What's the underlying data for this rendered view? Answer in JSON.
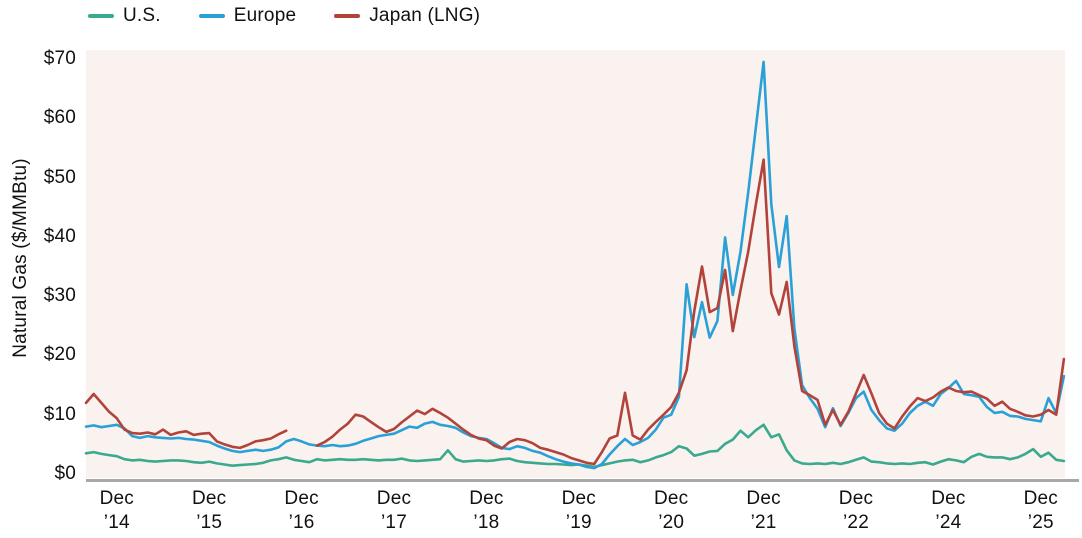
{
  "legend": {
    "items": [
      {
        "label": "U.S.",
        "color": "#3aa98d"
      },
      {
        "label": "Europe",
        "color": "#2aa0d6"
      },
      {
        "label": "Japan (LNG)",
        "color": "#b2433a"
      }
    ]
  },
  "chart_data": {
    "type": "line",
    "ylabel": "Natural Gas ($/MMBtu)",
    "ylim": [
      0,
      70
    ],
    "grid": false,
    "legend_position": "top-left",
    "plot_bg": "#f9f2ef",
    "axis_line_color": "#a8a8a8",
    "yticks": [
      {
        "value": 0,
        "label": "$0"
      },
      {
        "value": 10,
        "label": "$10"
      },
      {
        "value": 20,
        "label": "$20"
      },
      {
        "value": 30,
        "label": "$30"
      },
      {
        "value": 40,
        "label": "$40"
      },
      {
        "value": 50,
        "label": "$50"
      },
      {
        "value": 60,
        "label": "$60"
      },
      {
        "value": 70,
        "label": "$70"
      }
    ],
    "xticks": [
      {
        "index": 4,
        "line1": "Dec",
        "line2": "’14"
      },
      {
        "index": 16,
        "line1": "Dec",
        "line2": "’15"
      },
      {
        "index": 28,
        "line1": "Dec",
        "line2": "’16"
      },
      {
        "index": 40,
        "line1": "Dec",
        "line2": "’17"
      },
      {
        "index": 52,
        "line1": "Dec",
        "line2": "’18"
      },
      {
        "index": 64,
        "line1": "Dec",
        "line2": "’19"
      },
      {
        "index": 76,
        "line1": "Dec",
        "line2": "’20"
      },
      {
        "index": 88,
        "line1": "Dec",
        "line2": "’21"
      },
      {
        "index": 100,
        "line1": "Dec",
        "line2": "’22"
      },
      {
        "index": 112,
        "line1": "Dec",
        "line2": "’24"
      },
      {
        "index": 124,
        "line1": "Dec",
        "line2": "’25"
      }
    ],
    "series": [
      {
        "name": "U.S.",
        "color": "#3aa98d",
        "values": [
          4.0,
          4.2,
          3.9,
          3.7,
          3.5,
          3.0,
          2.8,
          2.9,
          2.7,
          2.6,
          2.7,
          2.8,
          2.8,
          2.7,
          2.5,
          2.4,
          2.6,
          2.3,
          2.1,
          1.9,
          2.0,
          2.1,
          2.2,
          2.4,
          2.8,
          3.0,
          3.3,
          2.9,
          2.7,
          2.5,
          3.0,
          2.8,
          2.9,
          3.0,
          2.9,
          2.9,
          3.0,
          2.9,
          2.8,
          2.9,
          2.9,
          3.1,
          2.8,
          2.7,
          2.8,
          2.9,
          3.0,
          4.5,
          3.0,
          2.6,
          2.7,
          2.8,
          2.7,
          2.8,
          3.0,
          3.1,
          2.7,
          2.5,
          2.4,
          2.3,
          2.2,
          2.2,
          2.1,
          2.0,
          2.1,
          1.9,
          1.7,
          2.0,
          2.3,
          2.6,
          2.8,
          2.9,
          2.5,
          2.8,
          3.3,
          3.7,
          4.2,
          5.2,
          4.8,
          3.6,
          3.9,
          4.3,
          4.4,
          5.6,
          6.3,
          7.8,
          6.7,
          7.9,
          8.8,
          6.7,
          7.2,
          4.5,
          2.8,
          2.3,
          2.2,
          2.3,
          2.2,
          2.4,
          2.2,
          2.5,
          2.9,
          3.3,
          2.6,
          2.5,
          2.3,
          2.2,
          2.3,
          2.2,
          2.4,
          2.5,
          2.1,
          2.6,
          3.0,
          2.8,
          2.5,
          3.4,
          3.9,
          3.4,
          3.3,
          3.3,
          3.0,
          3.3,
          3.9,
          4.7,
          3.4,
          4.1,
          2.9,
          2.7
        ]
      },
      {
        "name": "Europe",
        "color": "#2aa0d6",
        "values": [
          8.5,
          8.7,
          8.4,
          8.6,
          8.8,
          8.2,
          6.9,
          6.6,
          6.9,
          6.7,
          6.6,
          6.5,
          6.6,
          6.4,
          6.3,
          6.1,
          5.9,
          5.3,
          4.8,
          4.4,
          4.2,
          4.4,
          4.6,
          4.4,
          4.6,
          5.0,
          6.0,
          6.4,
          6.0,
          5.5,
          5.3,
          5.2,
          5.4,
          5.2,
          5.3,
          5.6,
          6.1,
          6.5,
          6.9,
          7.1,
          7.3,
          7.9,
          8.5,
          8.3,
          9.0,
          9.3,
          8.8,
          8.6,
          8.3,
          7.5,
          6.9,
          6.6,
          6.4,
          5.7,
          4.9,
          4.7,
          5.2,
          4.9,
          4.4,
          4.1,
          3.5,
          3.0,
          2.6,
          2.3,
          2.1,
          1.7,
          1.5,
          2.2,
          3.8,
          5.2,
          6.4,
          5.4,
          5.9,
          6.6,
          8.0,
          10.0,
          10.5,
          13.5,
          32.5,
          23.6,
          29.5,
          23.5,
          26.3,
          40.4,
          30.7,
          38.0,
          48.0,
          59.0,
          70.0,
          46.0,
          35.4,
          44.0,
          25.0,
          15.5,
          13.3,
          11.5,
          8.4,
          11.6,
          8.6,
          10.8,
          13.3,
          14.4,
          11.3,
          9.6,
          8.2,
          7.8,
          9.0,
          10.8,
          12.0,
          12.7,
          12.0,
          14.0,
          15.0,
          16.2,
          14.0,
          13.8,
          13.5,
          11.8,
          10.8,
          11.0,
          10.3,
          10.2,
          9.8,
          9.6,
          9.4,
          13.3,
          10.8,
          17.0
        ]
      },
      {
        "name": "Japan (LNG)",
        "color": "#b2433a",
        "values": [
          12.5,
          14.0,
          12.5,
          11.0,
          9.9,
          8.0,
          7.4,
          7.3,
          7.5,
          7.2,
          8.0,
          7.1,
          7.5,
          7.7,
          7.1,
          7.3,
          7.4,
          6.0,
          5.5,
          5.1,
          4.9,
          5.4,
          6.0,
          6.2,
          6.5,
          7.2,
          7.8,
          null,
          null,
          null,
          5.3,
          5.9,
          6.8,
          8.0,
          9.0,
          10.5,
          10.2,
          9.3,
          8.4,
          7.6,
          8.1,
          9.2,
          10.2,
          11.2,
          10.6,
          11.5,
          10.8,
          10.0,
          9.0,
          8.0,
          7.1,
          6.5,
          6.2,
          5.3,
          4.8,
          5.9,
          6.4,
          6.2,
          5.7,
          4.9,
          4.6,
          4.2,
          3.8,
          3.2,
          2.8,
          2.4,
          2.2,
          4.2,
          6.5,
          7.0,
          14.2,
          7.0,
          6.3,
          8.0,
          9.3,
          10.5,
          11.8,
          14.2,
          18.0,
          28.0,
          35.5,
          27.8,
          28.5,
          34.9,
          24.6,
          31.5,
          38.0,
          46.0,
          53.5,
          31.0,
          27.4,
          32.9,
          22.0,
          14.5,
          13.8,
          13.0,
          8.8,
          11.3,
          8.8,
          11.0,
          14.1,
          17.2,
          14.1,
          10.8,
          9.0,
          8.2,
          10.2,
          11.9,
          13.3,
          12.8,
          13.4,
          14.4,
          15.1,
          14.5,
          14.3,
          14.4,
          13.8,
          13.2,
          12.0,
          12.7,
          11.5,
          11.0,
          10.4,
          10.2,
          10.5,
          11.3,
          10.5,
          19.9
        ]
      }
    ]
  }
}
